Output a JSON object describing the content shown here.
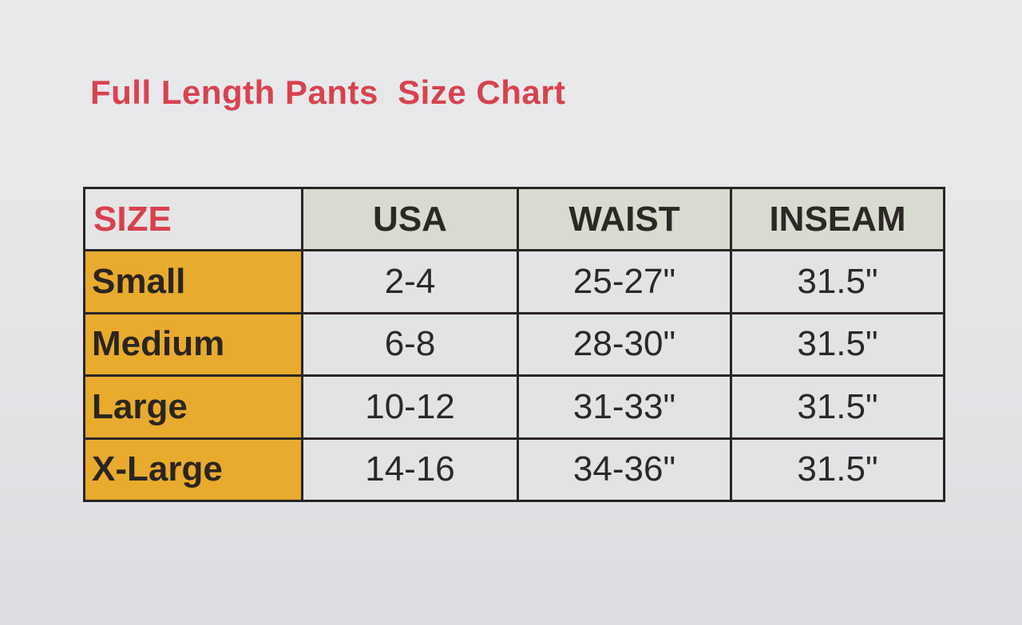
{
  "title": "Full Length Pants  Size Chart",
  "colors": {
    "title": "#d8424f",
    "size_column": "#e8ab2e",
    "header": "#d8dbcf",
    "border": "#2a2624"
  },
  "table": {
    "headers": [
      "SIZE",
      "USA",
      "WAIST",
      "INSEAM"
    ],
    "rows": [
      [
        "Small",
        "2-4",
        "25-27\"",
        "31.5\""
      ],
      [
        "Medium",
        "6-8",
        "28-30\"",
        "31.5\""
      ],
      [
        "Large",
        "10-12",
        "31-33\"",
        "31.5\""
      ],
      [
        "X-Large",
        "14-16",
        "34-36\"",
        "31.5\""
      ]
    ]
  }
}
